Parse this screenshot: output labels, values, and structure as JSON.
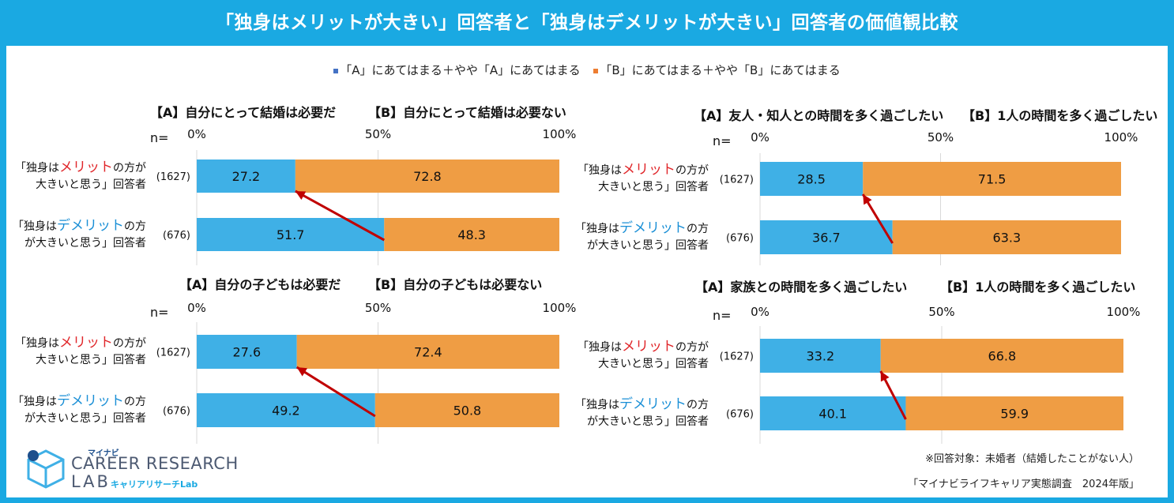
{
  "title": "「独身はメリットが大きい」回答者と「独身はデメリットが大きい」回答者の価値観比較",
  "legend": {
    "a": "「A」にあてはまる＋やや「A」にあてはまる",
    "b": "「B」にあてはまる＋やや「B」にあてはまる"
  },
  "colors": {
    "a": "#3fb0e6",
    "b": "#ef9d44",
    "arrow": "#c00000",
    "red_text": "#e0262a",
    "blue_text": "#1a8fd6",
    "brand": "#1aa9e2"
  },
  "row_labels": [
    {
      "pre": "「独身は",
      "hl": "メリット",
      "post1": "の方が",
      "line2": "大きいと思う」回答者",
      "hl_color": "red"
    },
    {
      "pre": "「独身は",
      "hl": "デメリット",
      "post1": "の方",
      "line2": "が大きいと思う」回答者",
      "hl_color": "blue"
    }
  ],
  "n_label": "n=",
  "tick_labels": [
    "0%",
    "50%",
    "100%"
  ],
  "chart_data": [
    {
      "type": "bar",
      "label_a": "【A】自分にとって結婚は必要だ",
      "label_b": "【B】自分にとって結婚は必要ない",
      "categories": [
        "「独身はメリットの方が大きいと思う」回答者",
        "「独身はデメリットの方が大きいと思う」回答者"
      ],
      "n": [
        "(1627)",
        "(676)"
      ],
      "series": [
        {
          "name": "「A」にあてはまる＋やや「A」にあてはまる",
          "values": [
            27.2,
            51.7
          ]
        },
        {
          "name": "「B」にあてはまる＋やや「B」にあてはまる",
          "values": [
            72.8,
            48.3
          ]
        }
      ],
      "xlim": [
        0,
        100
      ]
    },
    {
      "type": "bar",
      "label_a": "【A】友人・知人との時間を多く過ごしたい",
      "label_b": "【B】1人の時間を多く過ごしたい",
      "categories": [
        "「独身はメリットの方が大きいと思う」回答者",
        "「独身はデメリットの方が大きいと思う」回答者"
      ],
      "n": [
        "(1627)",
        "(676)"
      ],
      "series": [
        {
          "name": "「A」にあてはまる＋やや「A」にあてはまる",
          "values": [
            28.5,
            36.7
          ]
        },
        {
          "name": "「B」にあてはまる＋やや「B」にあてはまる",
          "values": [
            71.5,
            63.3
          ]
        }
      ],
      "xlim": [
        0,
        100
      ]
    },
    {
      "type": "bar",
      "label_a": "【A】自分の子どもは必要だ",
      "label_b": "【B】自分の子どもは必要ない",
      "categories": [
        "「独身はメリットの方が大きいと思う」回答者",
        "「独身はデメリットの方が大きいと思う」回答者"
      ],
      "n": [
        "(1627)",
        "(676)"
      ],
      "series": [
        {
          "name": "「A」にあてはまる＋やや「A」にあてはまる",
          "values": [
            27.6,
            49.2
          ]
        },
        {
          "name": "「B」にあてはまる＋やや「B」にあてはまる",
          "values": [
            72.4,
            50.8
          ]
        }
      ],
      "xlim": [
        0,
        100
      ]
    },
    {
      "type": "bar",
      "label_a": "【A】家族との時間を多く過ごしたい",
      "label_b": "【B】1人の時間を多く過ごしたい",
      "categories": [
        "「独身はメリットの方が大きいと思う」回答者",
        "「独身はデメリットの方が大きいと思う」回答者"
      ],
      "n": [
        "(1627)",
        "(676)"
      ],
      "series": [
        {
          "name": "「A」にあてはまる＋やや「A」にあてはまる",
          "values": [
            33.2,
            40.1
          ]
        },
        {
          "name": "「B」にあてはまる＋やや「B」にあてはまる",
          "values": [
            66.8,
            59.9
          ]
        }
      ],
      "xlim": [
        0,
        100
      ]
    }
  ],
  "logo": {
    "brand": "マイナビ",
    "line1": "CAREER RESEARCH",
    "line2": "LAB",
    "sub": "キャリアリサーチLab"
  },
  "note": "※回答対象：未婚者（結婚したことがない人）",
  "source": "「マイナビライフキャリア実態調査　2024年版」"
}
